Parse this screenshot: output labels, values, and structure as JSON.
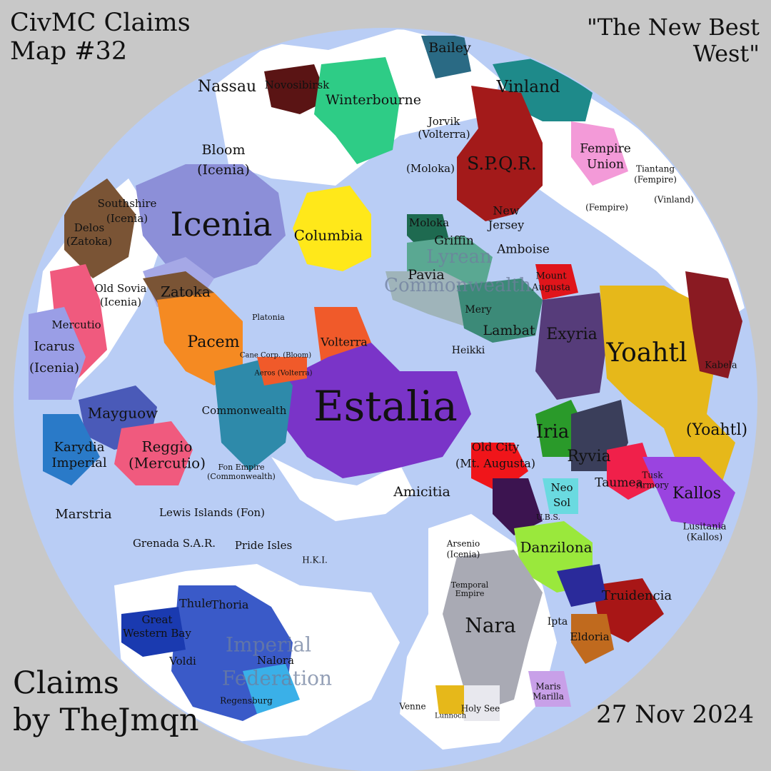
{
  "map_title_line1": "CivMC Claims",
  "map_title_line2": "Map #32",
  "subtitle_line1": "\"The New Best",
  "subtitle_line2": "West\"",
  "credit_line1": "Claims",
  "credit_line2": "by TheJmqn",
  "date": "27 Nov 2024",
  "colors": {
    "background": "#c8c8c8",
    "ocean": "#b9cdf5",
    "land": "#ffffff"
  },
  "labels": {
    "icenia": "Icenia",
    "estalia": "Estalia",
    "yoahtl": "Yoahtl",
    "yoahtl_paren": "(Yoahtl)",
    "nassau": "Nassau",
    "novosibirsk": "Novosibirsk",
    "winterbourne": "Winterbourne",
    "bailey": "Bailey",
    "vinland": "Vinland",
    "spqr": "S.P.Q.R.",
    "jorvik": "Jorvik",
    "volterra_paren": "(Volterra)",
    "moloka_paren": "(Moloka)",
    "fempire_union": "Fempire",
    "fempire_union2": "Union",
    "bloom": "Bloom",
    "icenia_paren": "(Icenia)",
    "southshire": "Southshire",
    "delos": "Delos",
    "zatoka_paren": "(Zatoka)",
    "columbia": "Columbia",
    "moloka": "Moloka",
    "griffin": "Griffin",
    "new": "New",
    "jersey": "Jersey",
    "amboise": "Amboise",
    "lyrean": "Lyrean",
    "commonwealth_big": "Commonwealth",
    "pavia": "Pavia",
    "old_sovia": "Old Sovia",
    "zatoka": "Zatoka",
    "mercutio": "Mercutio",
    "icarus": "Icarus",
    "pacem": "Pacem",
    "volterra": "Volterra",
    "lambat": "Lambat",
    "exyria": "Exyria",
    "mount": "Mount",
    "augusta": "Augusta",
    "mery": "Mery",
    "heikki": "Heikki",
    "mayguow": "Mayguow",
    "commonwealth": "Commonwealth",
    "karydia": "Karydia",
    "imperial": "Imperial",
    "reggio": "Reggio",
    "mercutio_paren": "(Mercutio)",
    "iria": "Iria",
    "ryvia": "Ryvia",
    "old_city": "Old City",
    "mt_augusta_paren": "(Mt. Augusta)",
    "taumea": "Taumea",
    "kallos": "Kallos",
    "amicitia": "Amicitia",
    "neo": "Neo",
    "sol": "Sol",
    "marstria": "Marstria",
    "lewis_islands": "Lewis Islands (Fon)",
    "grenada": "Grenada S.A.R.",
    "pride_isles": "Pride Isles",
    "hki": "H.K.I.",
    "danzilona": "Danzilona",
    "truidencia": "Truidencia",
    "thule": "Thule",
    "thoria": "Thoria",
    "great": "Great",
    "western_bay": "Western Bay",
    "imperial_fed1": "Imperial",
    "imperial_fed2": "Federation",
    "nalora": "Nalora",
    "voldi": "Voldi",
    "regensburg": "Regensburg",
    "nara": "Nara",
    "ipta": "Ipta",
    "eldoria": "Eldoria",
    "holy_see": "Holy See",
    "venne": "Venne",
    "lunnoch": "Lunnoch",
    "maris": "Maris",
    "marilla": "Marilla",
    "tiantang": "Tiantang",
    "fempire_paren": "(Fempire)",
    "vinland_paren": "(Vinland)",
    "kabela": "Kabela",
    "temporal_empire": "Temporal",
    "empire": "Empire",
    "arsenio": "Arsenio",
    "lusitania": "Lusitania",
    "kallos_paren": "(Kallos)",
    "tusk_armory": "Tusk",
    "armory": "Armory",
    "ubs": "U.B.S.",
    "platonia": "Platonia",
    "aeros": "Aeros (Volterra)",
    "cane_corp": "Cane Corp. (Bloom)",
    "fon_empire": "Fon Empire",
    "commonwealth_paren": "(Commonwealth)"
  }
}
